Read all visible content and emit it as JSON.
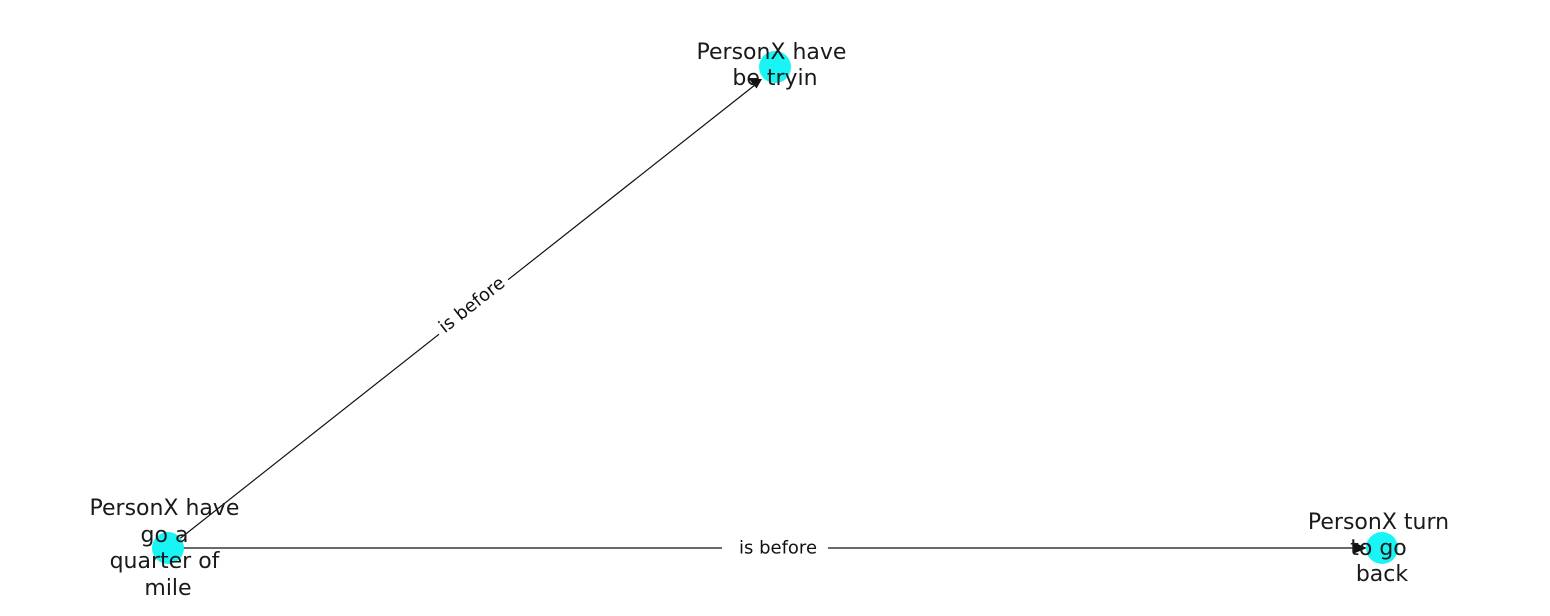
{
  "colors": {
    "node_fill": "#19f5f5",
    "edge": "#111111",
    "background": "#ffffff"
  },
  "graph": {
    "nodes": [
      {
        "id": "n1",
        "label_lines": [
          "PersonX have",
          "go a",
          "quarter of",
          "mile"
        ]
      },
      {
        "id": "n2",
        "label_lines": [
          "PersonX have",
          "be tryin"
        ]
      },
      {
        "id": "n3",
        "label_lines": [
          "PersonX turn",
          "to go",
          "back"
        ]
      }
    ],
    "edges": [
      {
        "from": "n1",
        "to": "n2",
        "label": "is before"
      },
      {
        "from": "n1",
        "to": "n3",
        "label": "is before"
      }
    ]
  }
}
